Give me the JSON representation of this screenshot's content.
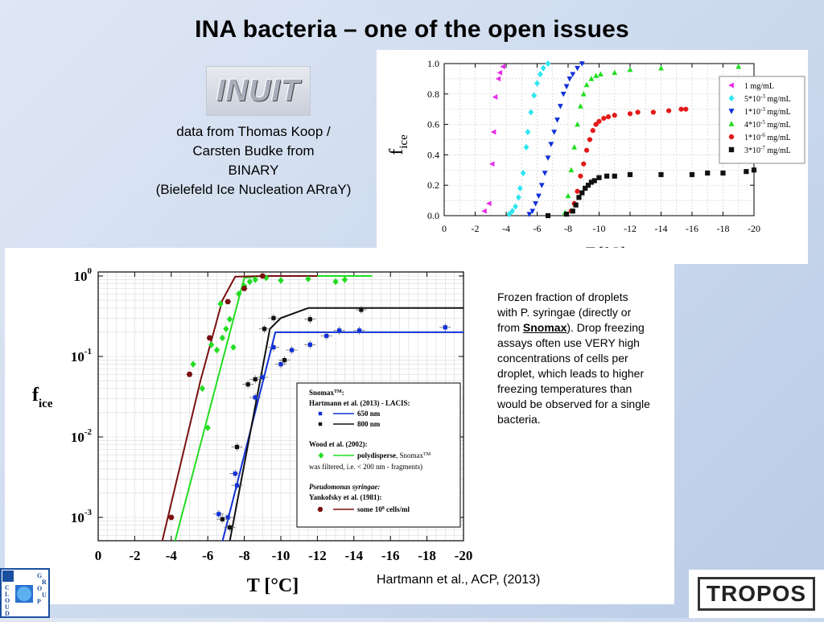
{
  "slide": {
    "title": "INA bacteria – one of the open issues",
    "inuit_logo": "INUIT",
    "description": [
      "data from Thomas Koop /",
      "Carsten Budke from",
      "BINARY",
      "(Bielefeld Ice Nucleation ARraY)"
    ],
    "caption_pre": "Frozen fraction of droplets with P. syringae (directly or from ",
    "caption_bold": "Snomax",
    "caption_post": "). Drop freezing assays often use VERY high concentrations of cells per droplet, which leads to higher freezing temperatures than would be observed for a single bacteria.",
    "citation": "Hartmann et al., ACP, (2013)",
    "tropos_logo": "TROPOS",
    "cloud_group_logo": {
      "left": [
        "C",
        "L",
        "O",
        "U",
        "D"
      ],
      "top": [
        "G",
        "R",
        "O",
        "U",
        "P"
      ]
    }
  },
  "colors": {
    "magenta": "#e62de6",
    "cyan": "#2ee6f0",
    "blue": "#1030d8",
    "green": "#22dd22",
    "red": "#e31a1a",
    "black": "#111111",
    "maroon": "#7a1010"
  },
  "chart_data": [
    {
      "type": "scatter",
      "xlabel": "T [°C]",
      "ylabel": "f",
      "ylabel_sub": "ice",
      "xlim": [
        0,
        -20
      ],
      "ylim": [
        0,
        1
      ],
      "x_ticks": [
        "0",
        "-2",
        "-4",
        "-6",
        "-8",
        "-10",
        "-12",
        "-14",
        "-16",
        "-18",
        "-20"
      ],
      "y_ticks": [
        "0.0",
        "0.2",
        "0.4",
        "0.6",
        "0.8",
        "1.0"
      ],
      "legend_position": "top-right",
      "series": [
        {
          "name": "1 mg/mL",
          "name_html": "1 mg/mL",
          "color": "magenta",
          "marker": "triangle-left",
          "x": [
            -2.6,
            -2.9,
            -3.1,
            -3.2,
            -3.3,
            -3.5,
            -3.6,
            -3.8
          ],
          "y": [
            0.03,
            0.08,
            0.34,
            0.55,
            0.78,
            0.9,
            0.94,
            0.98
          ]
        },
        {
          "name": "5*10-3 mg/mL",
          "name_html": "5*10<tspan baseline-shift='super' font-size='7'>-3</tspan> mg/mL",
          "color": "cyan",
          "marker": "diamond",
          "x": [
            -4.2,
            -4.4,
            -4.6,
            -4.8,
            -4.9,
            -5.1,
            -5.3,
            -5.4,
            -5.6,
            -5.8,
            -6.0,
            -6.2,
            -6.4,
            -6.7
          ],
          "y": [
            0.01,
            0.03,
            0.06,
            0.12,
            0.18,
            0.28,
            0.45,
            0.55,
            0.68,
            0.79,
            0.87,
            0.93,
            0.97,
            1.0
          ]
        },
        {
          "name": "1*10-3 mg/mL",
          "name_html": "1*10<tspan baseline-shift='super' font-size='7'>-3</tspan> mg/mL",
          "color": "blue",
          "marker": "triangle-down",
          "x": [
            -5.5,
            -5.7,
            -5.9,
            -6.1,
            -6.3,
            -6.5,
            -6.7,
            -6.9,
            -7.1,
            -7.3,
            -7.5,
            -7.7,
            -7.9,
            -8.1,
            -8.3,
            -8.6,
            -8.9
          ],
          "y": [
            0.01,
            0.03,
            0.08,
            0.13,
            0.2,
            0.28,
            0.38,
            0.47,
            0.55,
            0.63,
            0.72,
            0.8,
            0.85,
            0.9,
            0.93,
            0.97,
            1.0
          ]
        },
        {
          "name": "4*10-5 mg/mL",
          "name_html": "4*10<tspan baseline-shift='super' font-size='7'>-5</tspan> mg/mL",
          "color": "green",
          "marker": "triangle-up",
          "x": [
            -7.8,
            -8.0,
            -8.2,
            -8.4,
            -8.6,
            -8.8,
            -9.0,
            -9.2,
            -9.5,
            -9.8,
            -10.1,
            -11.0,
            -12.0,
            -14.0,
            -19.0
          ],
          "y": [
            0.02,
            0.13,
            0.3,
            0.45,
            0.6,
            0.72,
            0.8,
            0.86,
            0.9,
            0.92,
            0.93,
            0.94,
            0.96,
            0.97,
            0.98
          ]
        },
        {
          "name": "1*10-6 mg/mL",
          "name_html": "1*10<tspan baseline-shift='super' font-size='7'>-6</tspan> mg/mL",
          "color": "red",
          "marker": "circle",
          "x": [
            -8.2,
            -8.4,
            -8.6,
            -8.8,
            -9.0,
            -9.2,
            -9.4,
            -9.6,
            -9.8,
            -10.0,
            -10.3,
            -10.6,
            -11.0,
            -12.0,
            -12.5,
            -13.5,
            -14.5,
            -15.3,
            -15.6
          ],
          "y": [
            0.03,
            0.08,
            0.16,
            0.26,
            0.34,
            0.43,
            0.5,
            0.56,
            0.6,
            0.62,
            0.64,
            0.65,
            0.66,
            0.67,
            0.68,
            0.68,
            0.69,
            0.7,
            0.7
          ]
        },
        {
          "name": "3*10-7 mg/mL",
          "name_html": "3*10<tspan baseline-shift='super' font-size='7'>-7</tspan> mg/mL",
          "color": "black",
          "marker": "square",
          "x": [
            -6.7,
            -7.9,
            -8.3,
            -8.5,
            -8.7,
            -8.9,
            -9.1,
            -9.3,
            -9.5,
            -9.7,
            -10.0,
            -10.5,
            -11.0,
            -12.0,
            -14.0,
            -16.0,
            -17.0,
            -18.0,
            -19.5,
            -20.0
          ],
          "y": [
            0.0,
            0.01,
            0.03,
            0.07,
            0.12,
            0.15,
            0.18,
            0.2,
            0.22,
            0.23,
            0.25,
            0.26,
            0.26,
            0.27,
            0.27,
            0.27,
            0.28,
            0.28,
            0.29,
            0.3
          ]
        }
      ]
    },
    {
      "type": "scatter",
      "xlabel": "T [°C]",
      "ylabel": "f",
      "ylabel_sub": "ice",
      "y_scale": "log",
      "xlim": [
        0,
        -20
      ],
      "ylim": [
        0.0005,
        1.2
      ],
      "x_ticks": [
        "0",
        "-2",
        "-4",
        "-6",
        "-8",
        "-10",
        "-12",
        "-14",
        "-16",
        "-18",
        "-20"
      ],
      "y_ticks": [
        {
          "base": "10",
          "exp": "0"
        },
        {
          "base": "10",
          "exp": "-1"
        },
        {
          "base": "10",
          "exp": "-2"
        },
        {
          "base": "10",
          "exp": "-3"
        }
      ],
      "legend": {
        "heading1_html": "Snomax<tspan baseline-shift='super' font-size='6'>TM</tspan>:",
        "heading2": "Hartmann et al. (2013) - LACIS:",
        "item_650": "650 nm",
        "item_800": "800 nm",
        "heading3": "Wood et al. (2002):",
        "item_poly_html": "<tspan font-weight='bold'>polydisperse</tspan>, Snomax<tspan baseline-shift='super' font-size='6'>TM</tspan>",
        "poly_note": "was filtered, i.e. < 200 nm - fragments)",
        "heading4": "Pseudomonas syringae:",
        "heading5": "Yankofsky et al. (1981):",
        "item_yank_html": "some 10<tspan baseline-shift='super' font-size='6'>8</tspan> cells/ml"
      },
      "series": [
        {
          "name": "650 nm",
          "color": "blue",
          "marker": "square",
          "error_bars": true,
          "x": [
            -6.6,
            -7.1,
            -7.5,
            -7.6,
            -8.6,
            -9.0,
            -9.6,
            -10.0,
            -10.6,
            -11.6,
            -12.5,
            -13.2,
            -14.3,
            -19.0
          ],
          "y": [
            0.0011,
            0.001,
            0.0035,
            0.0025,
            0.031,
            0.055,
            0.13,
            0.08,
            0.12,
            0.14,
            0.18,
            0.21,
            0.21,
            0.23
          ],
          "fit_x": [
            -6.8,
            -9.7,
            -11.5,
            -20
          ],
          "fit_y": [
            0.0005,
            0.2,
            0.2,
            0.2
          ]
        },
        {
          "name": "800 nm",
          "color": "black",
          "marker": "square",
          "error_bars": true,
          "x": [
            -6.8,
            -7.2,
            -7.6,
            -8.2,
            -8.6,
            -9.1,
            -9.6,
            -10.2,
            -11.6,
            -14.4
          ],
          "y": [
            0.00095,
            0.00075,
            0.0075,
            0.045,
            0.052,
            0.22,
            0.3,
            0.09,
            0.29,
            0.38
          ],
          "fit_x": [
            -7.2,
            -9.4,
            -10.0,
            -11.5,
            -20
          ],
          "fit_y": [
            0.0005,
            0.22,
            0.3,
            0.4,
            0.4
          ]
        },
        {
          "name": "polydisperse, SnomaxTM",
          "color": "green",
          "marker": "diamond",
          "x": [
            -5.2,
            -5.7,
            -6.0,
            -6.2,
            -6.5,
            -6.7,
            -6.8,
            -7.0,
            -7.2,
            -7.4,
            -7.7,
            -8.0,
            -8.3,
            -8.6,
            -9.2,
            -10.0,
            -11.5,
            -13.0,
            -13.5
          ],
          "y": [
            0.08,
            0.04,
            0.013,
            0.14,
            0.12,
            0.45,
            0.17,
            0.22,
            0.29,
            0.13,
            0.6,
            0.75,
            0.85,
            0.9,
            0.95,
            0.88,
            0.92,
            0.85,
            0.9
          ],
          "fit_x": [
            -4.2,
            -8.0,
            -9.0,
            -15.0
          ],
          "fit_y": [
            0.0005,
            0.95,
            1.0,
            1.0
          ]
        },
        {
          "name": "some 108 cells/ml",
          "color": "maroon",
          "marker": "hexagon",
          "x": [
            -4.0,
            -5.0,
            -6.1,
            -7.1,
            -8.0,
            -9.0
          ],
          "y": [
            0.001,
            0.06,
            0.17,
            0.48,
            0.7,
            1.0
          ],
          "fit_x": [
            -3.5,
            -5.6,
            -6.8,
            -7.5,
            -9.0,
            -12
          ],
          "fit_y": [
            0.0005,
            0.05,
            0.5,
            0.98,
            1.0,
            1.0
          ]
        }
      ]
    }
  ]
}
